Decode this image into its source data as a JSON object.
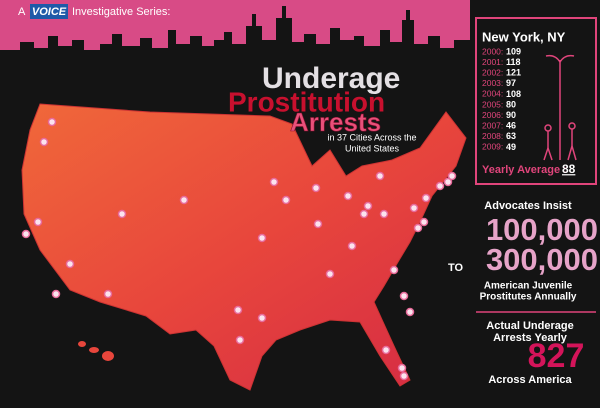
{
  "header": {
    "prefix": "A",
    "logo": "VOICE",
    "suffix": "Investigative Series:"
  },
  "title": {
    "line1": "Underage",
    "line2": "Prostitution",
    "line3": "Arrests",
    "subtitle": [
      "in 37 Cities Across the",
      "United States"
    ]
  },
  "new_york": {
    "title": "New York, NY",
    "rows": [
      [
        "2000:",
        "109"
      ],
      [
        "2001:",
        "118"
      ],
      [
        "2002:",
        "121"
      ],
      [
        "2003:",
        "97"
      ],
      [
        "2004:",
        "108"
      ],
      [
        "2005:",
        "80"
      ],
      [
        "2006:",
        "90"
      ],
      [
        "2007:",
        "46"
      ],
      [
        "2008:",
        "63"
      ],
      [
        "2009:",
        "49"
      ]
    ],
    "average_label": "Yearly Average :",
    "average": "88"
  },
  "advocates": {
    "label": "Advocates Insist",
    "low": "100,000",
    "to": "TO",
    "high": "300,000",
    "caption": [
      "American Juvenile",
      "Prostitutes Annually"
    ]
  },
  "actual": {
    "label": [
      "Actual Underage",
      "Arrests Yearly"
    ],
    "value": "827",
    "caption": "Across America"
  }
}
